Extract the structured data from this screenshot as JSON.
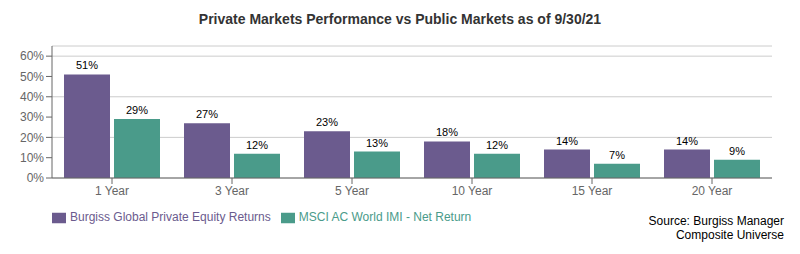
{
  "chart_data": {
    "type": "bar",
    "title": "Private Markets Performance vs Public Markets as of 9/30/21",
    "categories": [
      "1 Year",
      "3 Year",
      "5 Year",
      "10 Year",
      "15 Year",
      "20 Year"
    ],
    "series": [
      {
        "name": "Burgiss Global Private Equity Returns",
        "color": "#6B5B8E",
        "values": [
          51,
          27,
          23,
          18,
          14,
          14
        ],
        "value_labels": [
          "51%",
          "27%",
          "23%",
          "18%",
          "14%",
          "14%"
        ]
      },
      {
        "name": "MSCI AC World IMI - Net Return",
        "color": "#4A9B8A",
        "values": [
          29,
          12,
          13,
          12,
          7,
          9
        ],
        "value_labels": [
          "29%",
          "12%",
          "13%",
          "12%",
          "7%",
          "9%"
        ]
      }
    ],
    "ylim": [
      0,
      65
    ],
    "yticks": [
      {
        "value": 0,
        "label": "0%"
      },
      {
        "value": 10,
        "label": "10%"
      },
      {
        "value": 20,
        "label": "20%"
      },
      {
        "value": 30,
        "label": "30%"
      },
      {
        "value": 40,
        "label": "40%"
      },
      {
        "value": 50,
        "label": "50%"
      },
      {
        "value": 60,
        "label": "60%"
      }
    ],
    "grid": true,
    "legend": "bottom",
    "data_labels": true,
    "annotations": [
      "Source: Burgiss Manager",
      "Composite Universe"
    ]
  }
}
